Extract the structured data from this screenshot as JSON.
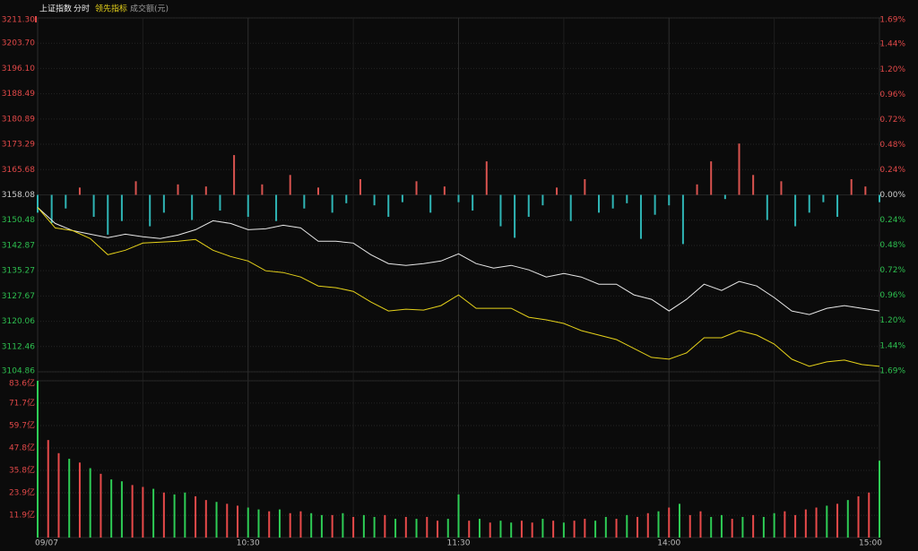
{
  "header": {
    "mode": "分时"
  },
  "chart_data": [
    {
      "type": "line",
      "xlim": [
        0,
        240
      ],
      "xticks": [
        {
          "value": 0,
          "label": "09/07"
        },
        {
          "value": 60,
          "label": "10:30"
        },
        {
          "value": 120,
          "label": "11:30"
        },
        {
          "value": 180,
          "label": "14:00"
        },
        {
          "value": 240,
          "label": "15:00"
        }
      ],
      "xminorticks": [
        30,
        90,
        150,
        210
      ],
      "ylim": [
        3104.86,
        3211.3
      ],
      "yticks": [
        {
          "value": 3211.3,
          "label": "3211.30"
        },
        {
          "value": 3203.7,
          "label": "3203.70"
        },
        {
          "value": 3196.1,
          "label": "3196.10"
        },
        {
          "value": 3188.49,
          "label": "3188.49"
        },
        {
          "value": 3180.89,
          "label": "3180.89"
        },
        {
          "value": 3173.29,
          "label": "3173.29"
        },
        {
          "value": 3165.68,
          "label": "3165.68"
        },
        {
          "value": 3158.08,
          "label": "3158.08"
        },
        {
          "value": 3150.48,
          "label": "3150.48"
        },
        {
          "value": 3142.87,
          "label": "3142.87"
        },
        {
          "value": 3135.27,
          "label": "3135.27"
        },
        {
          "value": 3127.67,
          "label": "3127.67"
        },
        {
          "value": 3120.06,
          "label": "3120.06"
        },
        {
          "value": 3112.46,
          "label": "3112.46"
        },
        {
          "value": 3104.86,
          "label": "3104.86"
        }
      ],
      "y2lim": [
        -1.69,
        1.69
      ],
      "y2ticks": [
        {
          "value": 1.69,
          "label": "1.69%"
        },
        {
          "value": 1.44,
          "label": "1.44%"
        },
        {
          "value": 1.2,
          "label": "1.20%"
        },
        {
          "value": 0.96,
          "label": "0.96%"
        },
        {
          "value": 0.72,
          "label": "0.72%"
        },
        {
          "value": 0.48,
          "label": "0.48%"
        },
        {
          "value": 0.24,
          "label": "0.24%"
        },
        {
          "value": 0,
          "label": "0.00%"
        },
        {
          "value": -0.24,
          "label": "0.24%"
        },
        {
          "value": -0.48,
          "label": "0.48%"
        },
        {
          "value": -0.72,
          "label": "0.72%"
        },
        {
          "value": -0.96,
          "label": "0.96%"
        },
        {
          "value": -1.2,
          "label": "1.20%"
        },
        {
          "value": -1.44,
          "label": "1.44%"
        },
        {
          "value": -1.69,
          "label": "1.69%"
        }
      ],
      "up_color": "#e04848",
      "down_color": "#2dbf4f",
      "flat_color": "#cccccc",
      "x": [
        0,
        5,
        10,
        15,
        20,
        25,
        30,
        35,
        40,
        45,
        50,
        55,
        60,
        65,
        70,
        75,
        80,
        85,
        90,
        95,
        100,
        105,
        110,
        115,
        120,
        125,
        130,
        135,
        140,
        145,
        150,
        155,
        160,
        165,
        170,
        175,
        180,
        185,
        190,
        195,
        200,
        205,
        210,
        215,
        220,
        225,
        230,
        235,
        240
      ],
      "series": [
        {
          "name": "上证指数",
          "color": "#e8e8e8",
          "values": [
            3154.32,
            3149.49,
            3147.34,
            3146.26,
            3145.19,
            3146.26,
            3145.46,
            3144.92,
            3145.99,
            3147.6,
            3150.29,
            3149.49,
            3147.6,
            3147.87,
            3148.95,
            3148.14,
            3144.11,
            3144.11,
            3143.58,
            3140.08,
            3137.4,
            3136.86,
            3137.4,
            3138.2,
            3140.35,
            3137.4,
            3136.06,
            3136.86,
            3135.52,
            3133.37,
            3134.44,
            3133.37,
            3131.22,
            3131.22,
            3128.0,
            3126.65,
            3123.16,
            3126.65,
            3131.22,
            3129.34,
            3132.03,
            3130.68,
            3127.19,
            3123.16,
            3122.09,
            3123.97,
            3124.77,
            3123.97,
            3123.16
          ]
        },
        {
          "name": "领先指标",
          "color": "#e6d21a",
          "values": [
            3154.32,
            3148.14,
            3147.34,
            3144.92,
            3140.08,
            3141.43,
            3143.58,
            3143.84,
            3144.11,
            3144.65,
            3141.43,
            3139.55,
            3138.2,
            3135.25,
            3134.71,
            3133.37,
            3130.68,
            3130.15,
            3129.07,
            3125.85,
            3123.16,
            3123.7,
            3123.43,
            3124.77,
            3127.99,
            3123.97,
            3123.97,
            3123.97,
            3121.28,
            3120.48,
            3119.4,
            3117.25,
            3115.91,
            3114.57,
            3111.88,
            3109.2,
            3108.66,
            3110.54,
            3115.1,
            3115.1,
            3117.25,
            3115.91,
            3113.22,
            3108.66,
            3106.51,
            3107.85,
            3108.39,
            3107.05,
            3106.51
          ]
        }
      ],
      "breadth": {
        "axis": "y2",
        "up_color": "#d9534f",
        "down_color": "#2fb5b5",
        "x": [
          0,
          4,
          8,
          12,
          16,
          20,
          24,
          28,
          32,
          36,
          40,
          44,
          48,
          52,
          56,
          60,
          64,
          68,
          72,
          76,
          80,
          84,
          88,
          92,
          96,
          100,
          104,
          108,
          112,
          116,
          120,
          124,
          128,
          132,
          136,
          140,
          144,
          148,
          152,
          156,
          160,
          164,
          168,
          172,
          176,
          180,
          184,
          188,
          192,
          196,
          200,
          204,
          208,
          212,
          216,
          220,
          224,
          228,
          232,
          236,
          240
        ],
        "values": [
          -0.17,
          -0.27,
          -0.13,
          0.07,
          -0.21,
          -0.38,
          -0.25,
          0.13,
          -0.3,
          -0.17,
          0.1,
          -0.24,
          0.08,
          -0.15,
          0.38,
          -0.21,
          0.1,
          -0.25,
          0.19,
          -0.13,
          0.07,
          -0.17,
          -0.08,
          0.15,
          -0.1,
          -0.21,
          -0.07,
          0.13,
          -0.17,
          0.08,
          -0.07,
          -0.15,
          0.32,
          -0.3,
          -0.41,
          -0.21,
          -0.1,
          0.07,
          -0.25,
          0.15,
          -0.17,
          -0.13,
          -0.08,
          -0.42,
          -0.19,
          -0.1,
          -0.47,
          0.1,
          0.32,
          -0.04,
          0.49,
          0.19,
          -0.24,
          0.13,
          -0.3,
          -0.17,
          -0.07,
          -0.21,
          0.15,
          0.08,
          -0.07
        ]
      }
    },
    {
      "type": "bar",
      "title": "成交额(元)",
      "xlim": [
        0,
        240
      ],
      "ylim": [
        0,
        83.6
      ],
      "yticks": [
        {
          "value": 83.6,
          "label": "83.6亿"
        },
        {
          "value": 71.7,
          "label": "71.7亿"
        },
        {
          "value": 59.7,
          "label": "59.7亿"
        },
        {
          "value": 47.8,
          "label": "47.8亿"
        },
        {
          "value": 35.8,
          "label": "35.8亿"
        },
        {
          "value": 23.9,
          "label": "23.9亿"
        },
        {
          "value": 11.9,
          "label": "11.9亿"
        }
      ],
      "x": [
        0,
        3,
        6,
        9,
        12,
        15,
        18,
        21,
        24,
        27,
        30,
        33,
        36,
        39,
        42,
        45,
        48,
        51,
        54,
        57,
        60,
        63,
        66,
        69,
        72,
        75,
        78,
        81,
        84,
        87,
        90,
        93,
        96,
        99,
        102,
        105,
        108,
        111,
        114,
        117,
        120,
        123,
        126,
        129,
        132,
        135,
        138,
        141,
        144,
        147,
        150,
        153,
        156,
        159,
        162,
        165,
        168,
        171,
        174,
        177,
        180,
        183,
        186,
        189,
        192,
        195,
        198,
        201,
        204,
        207,
        210,
        213,
        216,
        219,
        222,
        225,
        228,
        231,
        234,
        237,
        240
      ],
      "values": [
        83.6,
        52,
        45,
        42,
        40,
        37,
        34,
        31,
        30,
        28,
        27,
        26,
        24,
        23,
        24,
        22,
        20,
        19,
        18,
        17,
        16,
        15,
        14,
        15,
        13,
        14,
        13,
        12,
        12,
        13,
        11,
        12,
        11,
        12,
        10,
        11,
        10,
        11,
        9,
        10,
        23,
        9,
        10,
        8,
        9,
        8,
        9,
        8,
        10,
        9,
        8,
        9,
        10,
        9,
        11,
        10,
        12,
        11,
        13,
        14,
        16,
        18,
        12,
        14,
        11,
        12,
        10,
        11,
        12,
        11,
        13,
        14,
        12,
        15,
        16,
        17,
        18,
        20,
        22,
        24,
        41
      ],
      "colors": [
        "#2ecc55",
        "#e84a4a",
        "#e84a4a",
        "#2ecc55",
        "#e84a4a",
        "#2ecc55",
        "#e84a4a",
        "#2ecc55",
        "#2ecc55",
        "#e84a4a",
        "#e84a4a",
        "#2ecc55",
        "#e84a4a",
        "#2ecc55",
        "#2ecc55",
        "#e84a4a",
        "#e84a4a",
        "#2ecc55",
        "#e84a4a",
        "#e84a4a",
        "#2ecc55",
        "#2ecc55",
        "#e84a4a",
        "#2ecc55",
        "#e84a4a",
        "#e84a4a",
        "#2ecc55",
        "#2ecc55",
        "#e84a4a",
        "#2ecc55",
        "#e84a4a",
        "#2ecc55",
        "#2ecc55",
        "#e84a4a",
        "#2ecc55",
        "#e84a4a",
        "#2ecc55",
        "#e84a4a",
        "#e84a4a",
        "#2ecc55",
        "#2ecc55",
        "#e84a4a",
        "#2ecc55",
        "#e84a4a",
        "#2ecc55",
        "#2ecc55",
        "#e84a4a",
        "#e84a4a",
        "#2ecc55",
        "#e84a4a",
        "#2ecc55",
        "#e84a4a",
        "#e84a4a",
        "#2ecc55",
        "#2ecc55",
        "#e84a4a",
        "#2ecc55",
        "#e84a4a",
        "#e84a4a",
        "#2ecc55",
        "#e84a4a",
        "#2ecc55",
        "#e84a4a",
        "#e84a4a",
        "#2ecc55",
        "#2ecc55",
        "#e84a4a",
        "#2ecc55",
        "#e84a4a",
        "#2ecc55",
        "#2ecc55",
        "#e84a4a",
        "#e84a4a",
        "#e84a4a",
        "#e84a4a",
        "#2ecc55",
        "#e84a4a",
        "#2ecc55",
        "#e84a4a",
        "#e84a4a",
        "#2ecc55"
      ],
      "tick_color": "#e04848"
    }
  ]
}
